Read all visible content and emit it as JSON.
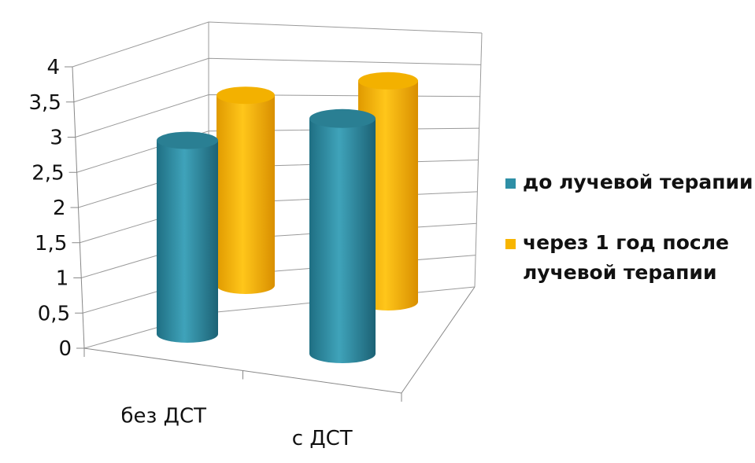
{
  "chart_data": {
    "type": "bar",
    "style": "3d-cylinder",
    "title": "",
    "xlabel": "",
    "ylabel": "",
    "categories": [
      "без ДСТ",
      "с ДСТ"
    ],
    "ylim": [
      0,
      4
    ],
    "y_ticks": [
      {
        "value": 0,
        "label": "0"
      },
      {
        "value": 0.5,
        "label": "0,5"
      },
      {
        "value": 1,
        "label": "1"
      },
      {
        "value": 1.5,
        "label": "1,5"
      },
      {
        "value": 2,
        "label": "2"
      },
      {
        "value": 2.5,
        "label": "2,5"
      },
      {
        "value": 3,
        "label": "3"
      },
      {
        "value": 3.5,
        "label": "3,5"
      },
      {
        "value": 4,
        "label": "4"
      }
    ],
    "grid": true,
    "legend_position": "right",
    "series": [
      {
        "name": "до лучевой терапии",
        "values": [
          2.8,
          3.4
        ],
        "color": "#2E8FA6"
      },
      {
        "name": "через 1 год после лучевой терапии",
        "values": [
          3.1,
          3.7
        ],
        "color": "#F7B500"
      }
    ]
  }
}
